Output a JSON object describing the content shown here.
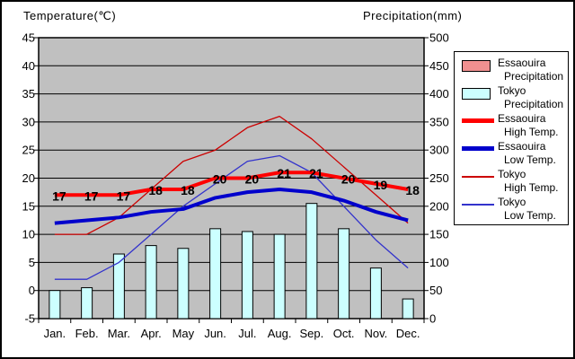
{
  "page": {
    "left_axis_title": "Temperature(℃)",
    "right_axis_title": "Precipitation(mm)"
  },
  "legend": {
    "position": "right",
    "items": [
      {
        "line1": "Essaouira",
        "line2": "Precipitation",
        "swatch": "bar",
        "color": "#f09090"
      },
      {
        "line1": "Tokyo",
        "line2": "Precipitation",
        "swatch": "bar",
        "color": "#ccffff"
      },
      {
        "line1": "Essaouira",
        "line2": "High Temp.",
        "swatch": "thick-line",
        "color": "#ff0000"
      },
      {
        "line1": "Essaouira",
        "line2": "Low Temp.",
        "swatch": "thick-line",
        "color": "#0000cc"
      },
      {
        "line1": "Tokyo",
        "line2": "High Temp.",
        "swatch": "thin-line",
        "color": "#cc0000"
      },
      {
        "line1": "Tokyo",
        "line2": "Low Temp.",
        "swatch": "thin-line",
        "color": "#3333cc"
      }
    ]
  },
  "chart_data": {
    "type": "bar",
    "subtype": "combo bar+line, dual y-axis climate chart",
    "categories": [
      "Jan.",
      "Feb.",
      "Mar.",
      "Apr.",
      "May",
      "Jun.",
      "Jul.",
      "Aug.",
      "Sep.",
      "Oct.",
      "Nov.",
      "Dec."
    ],
    "left_axis": {
      "title": "Temperature(℃)",
      "min": -5,
      "max": 45,
      "step": 5
    },
    "right_axis": {
      "title": "Precipitation(mm)",
      "min": 0,
      "max": 500,
      "step": 50
    },
    "grid": "horizontal gridlines only, black on gray plot area",
    "plot_background": "#c0c0c0",
    "legend_position": "right",
    "series": [
      {
        "name": "Essaouira Precipitation",
        "type": "bar",
        "axis": "right",
        "color": "#f09090",
        "values": [],
        "note": "listed in legend but no bars visible in plot"
      },
      {
        "name": "Tokyo Precipitation",
        "type": "bar",
        "axis": "right",
        "color": "#ccffff",
        "values": [
          50,
          55,
          115,
          130,
          125,
          160,
          155,
          150,
          205,
          160,
          90,
          35
        ]
      },
      {
        "name": "Essaouira High Temp.",
        "type": "line",
        "axis": "left",
        "color": "#ff0000",
        "thickness": "thick",
        "values": [
          17,
          17,
          17,
          18,
          18,
          20,
          20,
          21,
          21,
          20,
          19,
          18
        ],
        "data_labels_visible": true
      },
      {
        "name": "Essaouira Low Temp.",
        "type": "line",
        "axis": "left",
        "color": "#0000cc",
        "thickness": "thick",
        "values": [
          12,
          12.5,
          13,
          14,
          14.5,
          16.5,
          17.5,
          18,
          17.5,
          16,
          14,
          12.5
        ]
      },
      {
        "name": "Tokyo High Temp.",
        "type": "line",
        "axis": "left",
        "color": "#cc0000",
        "thickness": "thin",
        "values": [
          10,
          10,
          13,
          18,
          23,
          25,
          29,
          31,
          27,
          22,
          17,
          12
        ]
      },
      {
        "name": "Tokyo Low Temp.",
        "type": "line",
        "axis": "left",
        "color": "#3333cc",
        "thickness": "thin",
        "values": [
          2,
          2,
          5,
          10,
          15,
          19,
          23,
          24,
          21,
          15,
          9,
          4
        ]
      }
    ]
  }
}
